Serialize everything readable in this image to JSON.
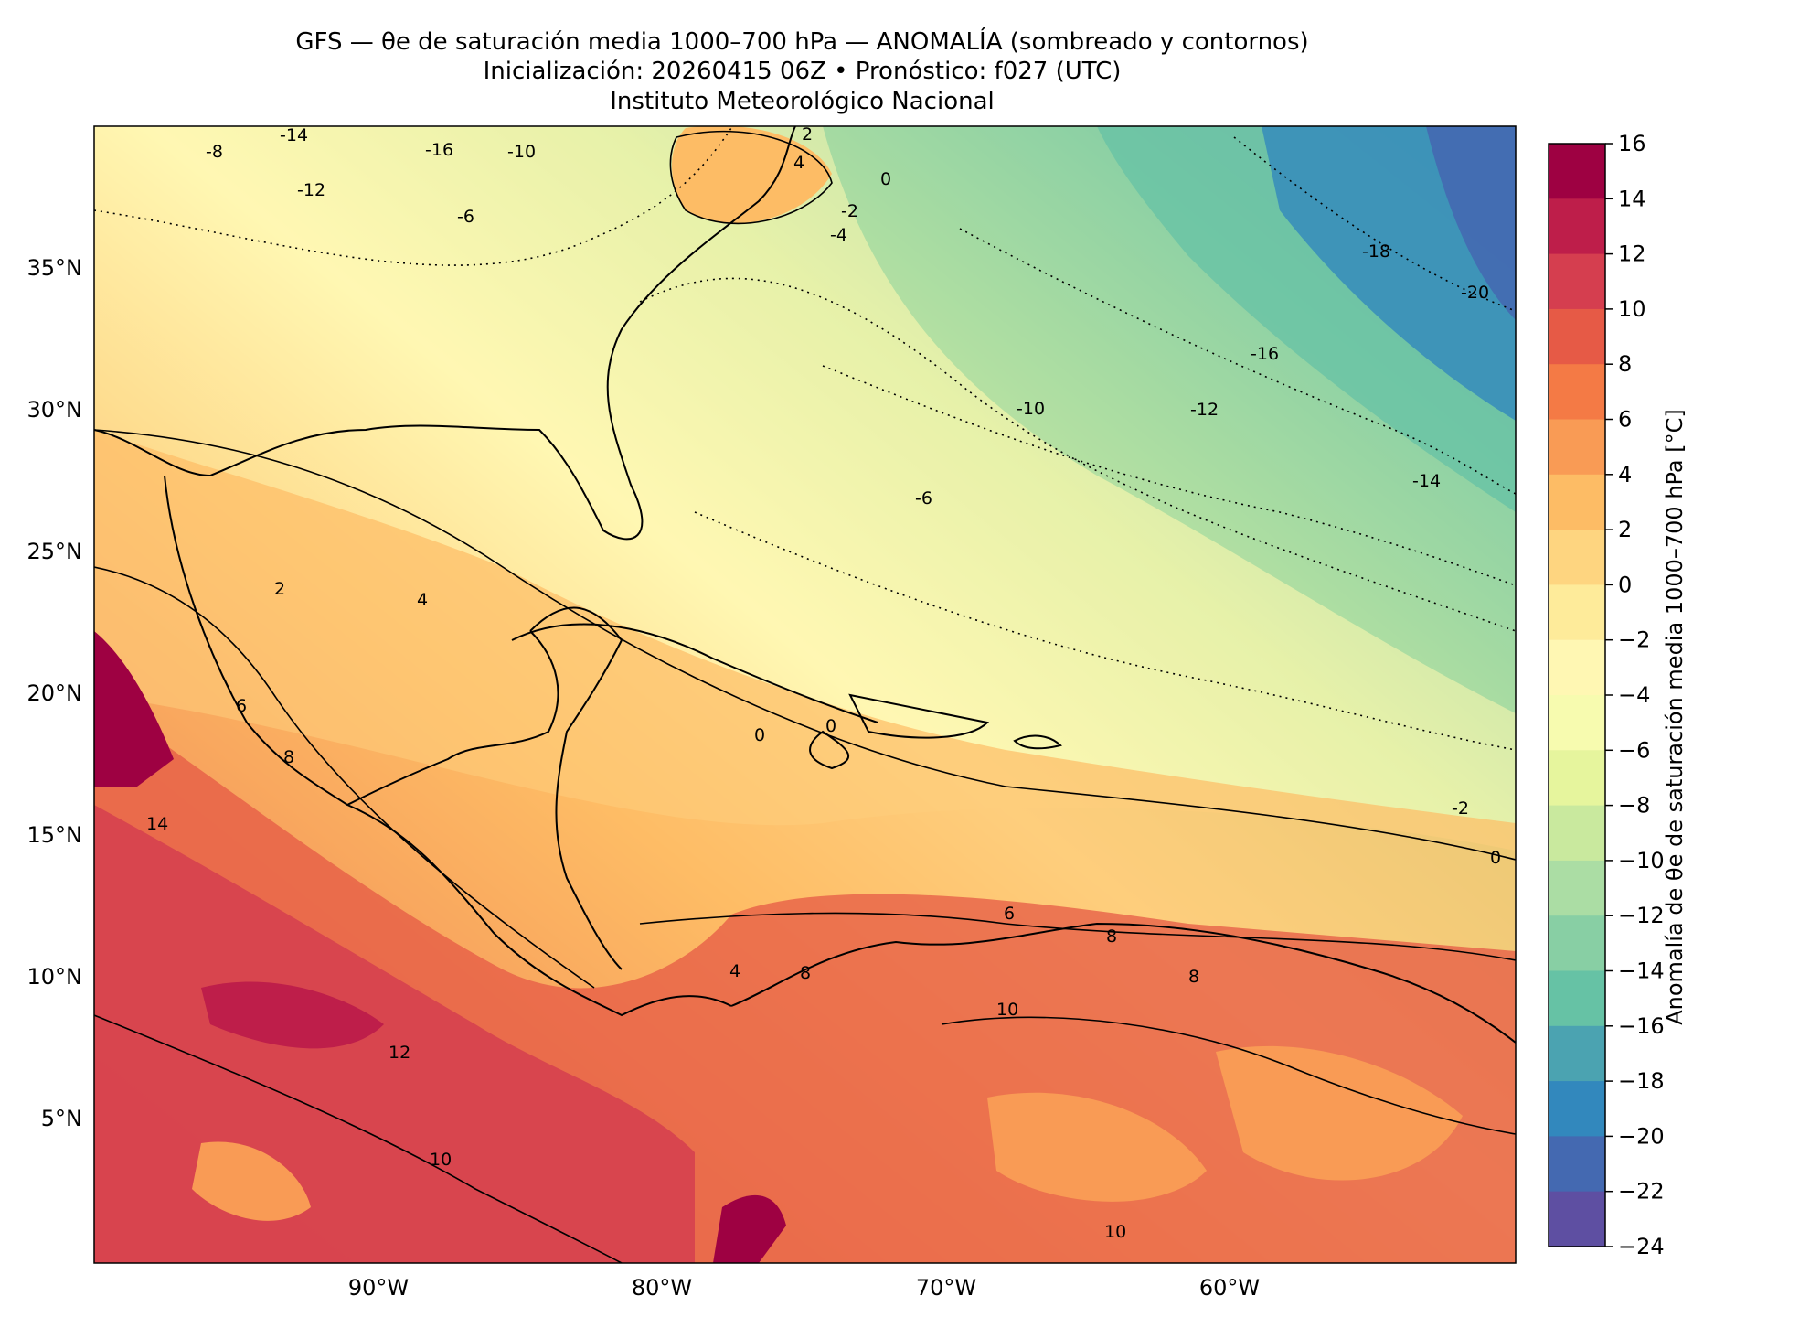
{
  "title": {
    "line1": "GFS — θe de saturación media 1000–700 hPa — ANOMALÍA (sombreado y contornos)",
    "line2": "Inicialización: 20260415 06Z   •   Pronóstico: f027 (UTC)",
    "line3": "Instituto Meteorológico Nacional"
  },
  "axes": {
    "lat_labels": [
      "35°N",
      "30°N",
      "25°N",
      "20°N",
      "15°N",
      "10°N",
      "5°N"
    ],
    "lon_labels": [
      "90°W",
      "80°W",
      "70°W",
      "60°W"
    ]
  },
  "colorbar": {
    "label": "Anomalía de θe de saturación media 1000–700 hPa [°C]",
    "ticks": [
      "16",
      "14",
      "12",
      "10",
      "8",
      "6",
      "4",
      "2",
      "0",
      "−2",
      "−4",
      "−6",
      "−8",
      "−10",
      "−12",
      "−14",
      "−16",
      "−18",
      "−20",
      "−22",
      "−24"
    ],
    "colors": [
      "#9e0142",
      "#be1e4a",
      "#d53e4f",
      "#e65a46",
      "#f47a45",
      "#f99b55",
      "#fdbc65",
      "#fed580",
      "#feeb9a",
      "#fff7b3",
      "#f7fbaf",
      "#e6f59d",
      "#c9e99e",
      "#abdda4",
      "#88cfa4",
      "#66c2a5",
      "#4ba3b1",
      "#3288bd",
      "#4469b1",
      "#5e4fa2"
    ]
  },
  "contour_labels": [
    "-14",
    "-16",
    "-10",
    "-12",
    "-8",
    "-6",
    "-4",
    "-2",
    "0",
    "2",
    "4",
    "6",
    "8",
    "10",
    "12",
    "-18",
    "-20",
    "14"
  ]
}
